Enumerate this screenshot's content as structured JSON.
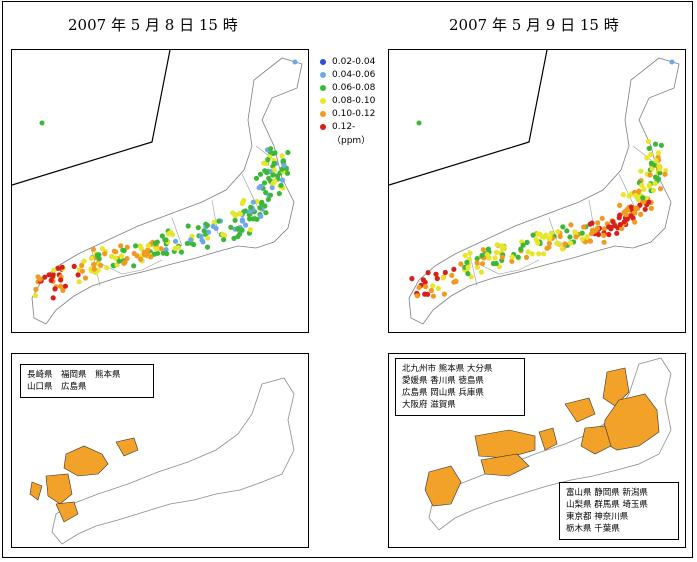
{
  "titles": {
    "left": "2007 年 5 月 8 日 15 時",
    "right": "2007 年 5 月 9 日 15 時"
  },
  "legend": {
    "items": [
      {
        "label": "0.02-0.04",
        "color": "#2a4fd6"
      },
      {
        "label": "0.04-0.06",
        "color": "#6fa8e8"
      },
      {
        "label": "0.06-0.08",
        "color": "#3cb838"
      },
      {
        "label": "0.08-0.10",
        "color": "#e8e62a"
      },
      {
        "label": "0.10-0.12",
        "color": "#f09a22"
      },
      {
        "label": "0.12-",
        "color": "#d8201a"
      }
    ],
    "unit": "（ppm）"
  },
  "prefectures_may8": {
    "lines": [
      "長崎県　福岡県　熊本県",
      "山口県　広島県"
    ]
  },
  "prefectures_may9_west": {
    "lines": [
      "北九州市 熊本県 大分県",
      "愛媛県 香川県 徳島県",
      "広島県 岡山県 兵庫県",
      "大阪府 滋賀県"
    ]
  },
  "prefectures_may9_east": {
    "lines": [
      "富山県 静岡県 新潟県",
      "山梨県 群馬県 埼玉県",
      "東京都 神奈川県",
      "栃木県 千葉県"
    ]
  },
  "colors": {
    "highlight": "#f2a129",
    "outline": "#000000"
  }
}
